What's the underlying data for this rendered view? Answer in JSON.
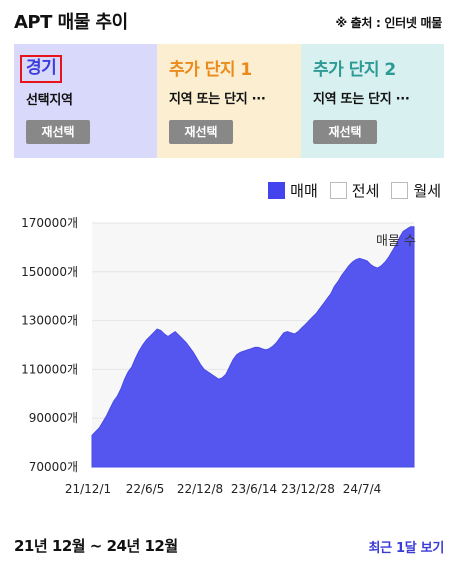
{
  "header": {
    "title": "APT 매물 추이",
    "source": "※ 출처 : 인터넷 매물"
  },
  "panels": [
    {
      "name": "경기",
      "sub": "선택지역",
      "button": "재선택"
    },
    {
      "name": "추가 단지 1",
      "sub": "지역 또는 단지 ···",
      "button": "재선택"
    },
    {
      "name": "추가 단지 2",
      "sub": "지역 또는 단지 ···",
      "button": "재선택"
    }
  ],
  "legend": [
    {
      "label": "매매",
      "checked": true
    },
    {
      "label": "전세",
      "checked": false
    },
    {
      "label": "월세",
      "checked": false
    }
  ],
  "colors": {
    "series": "#5555f0",
    "accent": "#3b3bd6",
    "highlight": "#e8141b"
  },
  "chart_data": {
    "type": "area",
    "annotation": "매물 수",
    "y_ticks": [
      "170000개",
      "150000개",
      "130000개",
      "110000개",
      "90000개",
      "70000개"
    ],
    "y_tick_values": [
      170000,
      150000,
      130000,
      110000,
      90000,
      70000
    ],
    "ylim": [
      70000,
      170000
    ],
    "x_ticks": [
      "21/12/1",
      "22/6/5",
      "22/12/8",
      "23/6/14",
      "23/12/28",
      "24/7/4"
    ],
    "series": [
      {
        "values": [
          83000,
          84500,
          86000,
          88500,
          91000,
          94000,
          97000,
          99000,
          102000,
          106000,
          109000,
          111000,
          114500,
          117500,
          120000,
          122000,
          123500,
          125000,
          126500,
          126000,
          124500,
          123500,
          124500,
          125500,
          124000,
          122500,
          121000,
          119000,
          117000,
          114500,
          112000,
          110000,
          109000,
          108000,
          107000,
          106000,
          106500,
          108000,
          111000,
          114000,
          116000,
          117000,
          117500,
          118000,
          118500,
          119000,
          119000,
          118500,
          118000,
          118500,
          119500,
          121000,
          123000,
          125000,
          125500,
          125000,
          124500,
          125500,
          127000,
          128500,
          130000,
          131500,
          133000,
          135000,
          137000,
          139000,
          141000,
          144000,
          146000,
          148500,
          150500,
          152500,
          154000,
          155000,
          155500,
          155000,
          154500,
          153000,
          152000,
          151500,
          152500,
          154000,
          156000,
          158500,
          161000,
          164000,
          166500,
          167500,
          168500,
          168500
        ]
      }
    ]
  },
  "footer": {
    "range": "21년 12월 ~ 24년 12월",
    "recent": "최근 1달 보기"
  }
}
